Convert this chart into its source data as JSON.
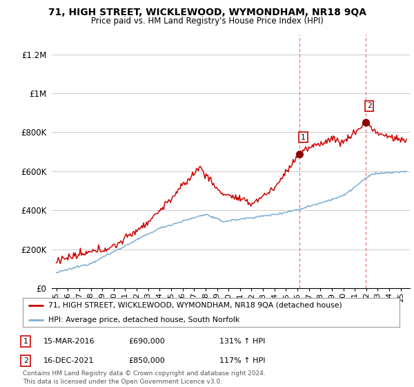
{
  "title": "71, HIGH STREET, WICKLEWOOD, WYMONDHAM, NR18 9QA",
  "subtitle": "Price paid vs. HM Land Registry's House Price Index (HPI)",
  "ylabel_ticks": [
    "£0",
    "£200K",
    "£400K",
    "£600K",
    "£800K",
    "£1M",
    "£1.2M"
  ],
  "ytick_values": [
    0,
    200000,
    400000,
    600000,
    800000,
    1000000,
    1200000
  ],
  "ylim": [
    0,
    1300000
  ],
  "hpi_color": "#7bafd4",
  "price_color": "#cc0000",
  "vline_color": "#cc0000",
  "sale1_year": 2016.21,
  "sale1_price": 690000,
  "sale2_year": 2021.96,
  "sale2_price": 850000,
  "sale1_label": "1",
  "sale1_date": "15-MAR-2016",
  "sale1_price_str": "£690,000",
  "sale1_hpi": "131% ↑ HPI",
  "sale2_label": "2",
  "sale2_date": "16-DEC-2021",
  "sale2_price_str": "£850,000",
  "sale2_hpi": "117% ↑ HPI",
  "legend_line1": "71, HIGH STREET, WICKLEWOOD, WYMONDHAM, NR18 9QA (detached house)",
  "legend_line2": "HPI: Average price, detached house, South Norfolk",
  "footer": "Contains HM Land Registry data © Crown copyright and database right 2024.\nThis data is licensed under the Open Government Licence v3.0.",
  "background_color": "#ffffff",
  "grid_color": "#cccccc",
  "xlim_left": 1994.6,
  "xlim_right": 2025.8
}
